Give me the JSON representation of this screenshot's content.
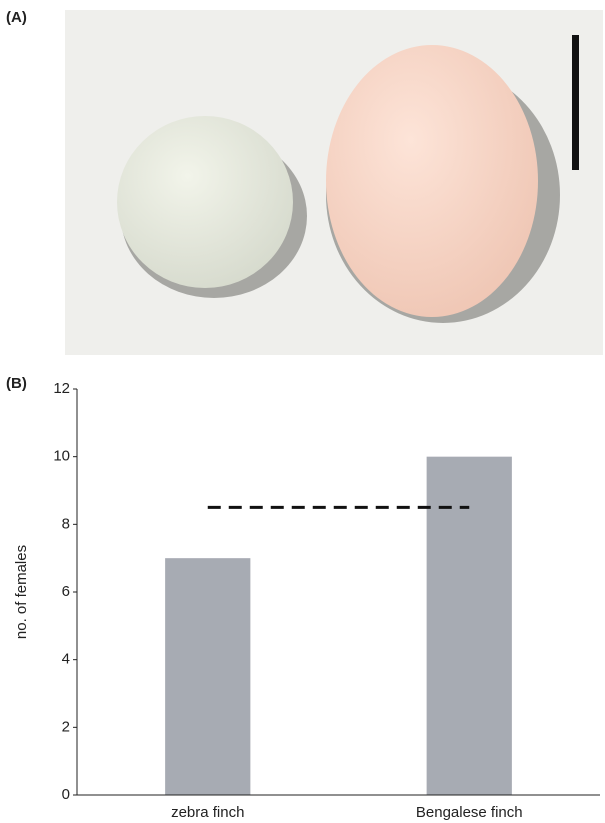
{
  "panel_labels": [
    "(A)",
    "(B)"
  ],
  "chart_data": {
    "type": "bar",
    "y_label": "no. of females",
    "categories": [
      "zebra finch",
      "Bengalese finch"
    ],
    "values": [
      7,
      10
    ],
    "color": "#a7abb3",
    "reference_line": 8.5,
    "ylim": [
      0,
      12
    ],
    "yticks": [
      0,
      2,
      4,
      6,
      8,
      10,
      12
    ]
  }
}
